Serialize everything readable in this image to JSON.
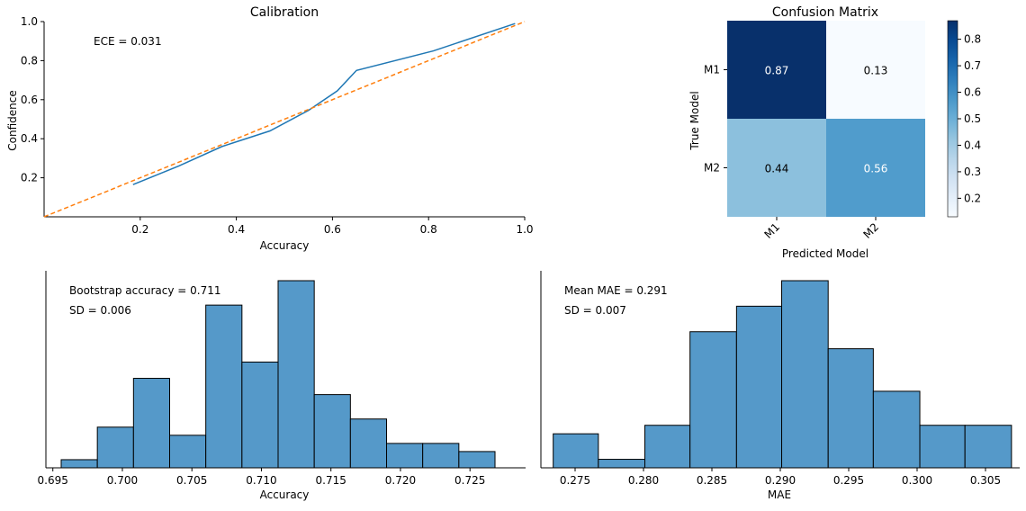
{
  "colors": {
    "line": "#1f77b4",
    "diag": "#ff7f0e",
    "bar": "#5599c9",
    "edge": "#000000"
  },
  "chart_data": [
    {
      "type": "line",
      "title": "Calibration",
      "xlabel": "Accuracy",
      "ylabel": "Confidence",
      "xlim": [
        0,
        1
      ],
      "ylim": [
        0,
        1
      ],
      "xticks": [
        "0.2",
        "0.4",
        "0.6",
        "0.8",
        "1.0"
      ],
      "yticks": [
        "0.2",
        "0.4",
        "0.6",
        "0.8",
        "1.0"
      ],
      "annotation": "ECE = 0.031",
      "series": [
        {
          "style": "solid",
          "color": "#1f77b4",
          "x": [
            0.185,
            0.28,
            0.37,
            0.47,
            0.55,
            0.61,
            0.65,
            0.81,
            0.98
          ],
          "y": [
            0.165,
            0.26,
            0.36,
            0.44,
            0.545,
            0.645,
            0.75,
            0.85,
            0.99
          ]
        },
        {
          "style": "dashed",
          "color": "#ff7f0e",
          "x": [
            0,
            1
          ],
          "y": [
            0,
            1
          ]
        }
      ],
      "grid": false
    },
    {
      "type": "heatmap",
      "title": "Confusion Matrix",
      "xlabel": "Predicted Model",
      "ylabel": "True Model",
      "xcategories": [
        "M1",
        "M2"
      ],
      "ycategories": [
        "M1",
        "M2"
      ],
      "values": [
        [
          0.87,
          0.13
        ],
        [
          0.44,
          0.56
        ]
      ],
      "cell_labels": [
        [
          "0.87",
          "0.13"
        ],
        [
          "0.44",
          "0.56"
        ]
      ],
      "colormap": "Blues",
      "colorbar_range": [
        0.13,
        0.87
      ],
      "colorbar_ticks": [
        "0.2",
        "0.3",
        "0.4",
        "0.5",
        "0.6",
        "0.7",
        "0.8"
      ]
    },
    {
      "type": "bar",
      "subtype": "histogram",
      "xlabel": "Accuracy",
      "xlim": [
        0.6945,
        0.729
      ],
      "xticks": [
        "0.695",
        "0.700",
        "0.705",
        "0.710",
        "0.715",
        "0.720",
        "0.725"
      ],
      "bin_edges": [
        0.6956,
        0.6982,
        0.7008,
        0.7034,
        0.706,
        0.7086,
        0.7112,
        0.7138,
        0.7164,
        0.719,
        0.7216,
        0.7242,
        0.7268
      ],
      "counts": [
        1,
        5,
        11,
        4,
        20,
        13,
        23,
        9,
        6,
        3,
        3,
        2
      ],
      "annotations": [
        "Bootstrap accuracy = 0.711",
        "SD = 0.006"
      ]
    },
    {
      "type": "bar",
      "subtype": "histogram",
      "xlabel": "MAE",
      "xlim": [
        0.2725,
        0.3075
      ],
      "xticks": [
        "0.275",
        "0.280",
        "0.285",
        "0.290",
        "0.295",
        "0.300",
        "0.305"
      ],
      "bin_edges": [
        0.2734,
        0.2767,
        0.2801,
        0.2834,
        0.2868,
        0.2901,
        0.2935,
        0.2968,
        0.3002,
        0.3035,
        0.3069
      ],
      "counts": [
        4,
        1,
        5,
        16,
        19,
        22,
        14,
        9,
        5,
        5
      ],
      "annotations": [
        "Mean MAE = 0.291",
        "SD = 0.007"
      ]
    }
  ]
}
